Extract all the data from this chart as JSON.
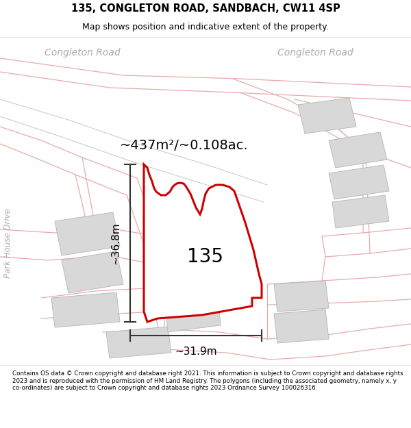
{
  "title": "135, CONGLETON ROAD, SANDBACH, CW11 4SP",
  "subtitle": "Map shows position and indicative extent of the property.",
  "footer": "Contains OS data © Crown copyright and database right 2021. This information is subject to Crown copyright and database rights 2023 and is reproduced with the permission of HM Land Registry. The polygons (including the associated geometry, namely x, y co-ordinates) are subject to Crown copyright and database rights 2023 Ordnance Survey 100026316.",
  "map_bg_color": "#f2f0ee",
  "area_text": "~437m²/~0.108ac.",
  "number_text": "135",
  "width_text": "~31.9m",
  "height_text": "~36.8m",
  "road_label_left": "Congleton Road",
  "road_label_right": "Congleton Road",
  "side_label": "Park House Drive",
  "main_poly_color": "#cc0000",
  "main_poly_fill": "#ffffff",
  "dim_color": "#333333",
  "building_fill": "#d8d8d8",
  "building_edge": "#bbbbbb",
  "road_color": "#e8aaaa",
  "road_gray_color": "#cccccc"
}
